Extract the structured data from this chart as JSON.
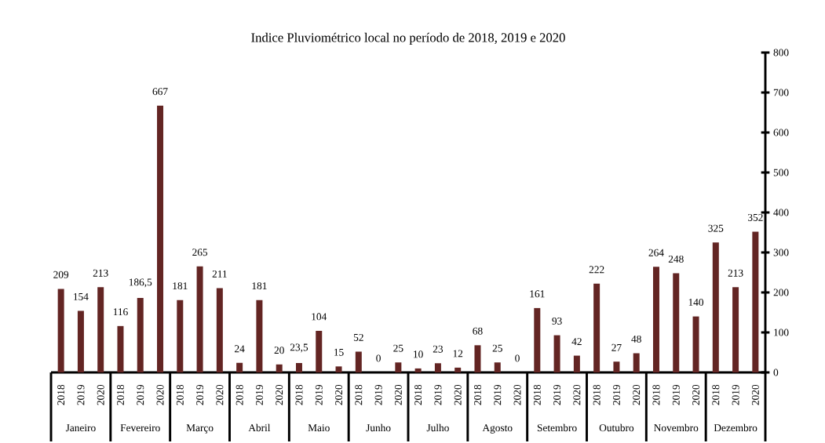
{
  "chart_data": {
    "type": "bar",
    "title": "Indice Pluviométrico local no período de 2018, 2019 e 2020",
    "categories": [
      "2018",
      "2019",
      "2020",
      "2018",
      "2019",
      "2020",
      "2018",
      "2019",
      "2020",
      "2018",
      "2019",
      "2020",
      "2018",
      "2019",
      "2020",
      "2018",
      "2019",
      "2020",
      "2018",
      "2019",
      "2020",
      "2018",
      "2019",
      "2020",
      "2018",
      "2019",
      "2020",
      "2018",
      "2019",
      "2020",
      "2018",
      "2019",
      "2020",
      "2018",
      "2019",
      "2020"
    ],
    "values": [
      209,
      154,
      213,
      116,
      186.5,
      667,
      181,
      265,
      211,
      24,
      181,
      20,
      23.5,
      104,
      15,
      52,
      0,
      25,
      10,
      23,
      12,
      68,
      25,
      0,
      161,
      93,
      42,
      222,
      27,
      48,
      264,
      248,
      140,
      325,
      213,
      352
    ],
    "value_labels": [
      "209",
      "154",
      "213",
      "116",
      "186,5",
      "667",
      "181",
      "265",
      "211",
      "24",
      "181",
      "20",
      "23,5",
      "104",
      "15",
      "52",
      "0",
      "25",
      "10",
      "23",
      "12",
      "68",
      "25",
      "0",
      "161",
      "93",
      "42",
      "222",
      "27",
      "48",
      "264",
      "248",
      "140",
      "325",
      "213",
      "352"
    ],
    "color": "#632523",
    "ylim": [
      0,
      800
    ],
    "yticks": [
      0,
      100,
      200,
      300,
      400,
      500,
      600,
      700,
      800
    ],
    "annotations": [
      "Janeiro",
      "Fevereiro",
      "Março",
      "Abril",
      "Maio",
      "Junho",
      "Julho",
      "Agosto",
      "Setembro",
      "Outubro",
      "Novembro",
      "Dezembro"
    ]
  }
}
